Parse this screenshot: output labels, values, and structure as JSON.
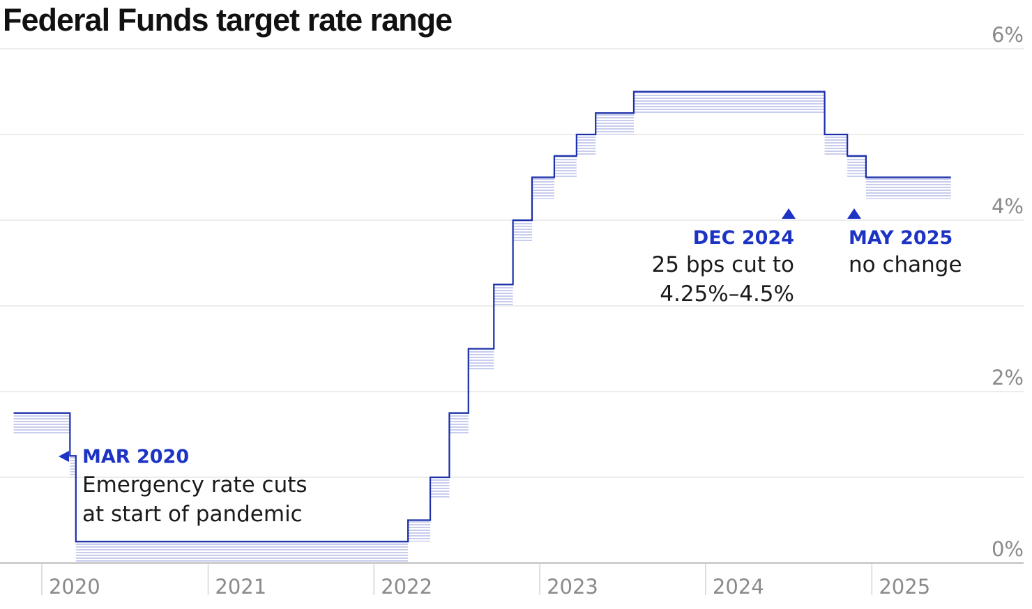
{
  "chart_data": {
    "type": "line",
    "title": "Federal Funds target rate range",
    "ylim": [
      0,
      6
    ],
    "xlim": [
      "2019-10",
      "2025-12"
    ],
    "y_ticks": [
      "0%",
      "2%",
      "4%",
      "6%"
    ],
    "x_ticks": [
      "2020",
      "2021",
      "2022",
      "2023",
      "2024",
      "2025"
    ],
    "grid": true,
    "series": [
      {
        "step": "post",
        "x": [
          "2019-10-31",
          "2020-03-03",
          "2020-03-16",
          "2022-03-17",
          "2022-05-05",
          "2022-06-16",
          "2022-07-28",
          "2022-09-22",
          "2022-11-03",
          "2022-12-15",
          "2023-02-02",
          "2023-03-23",
          "2023-05-04",
          "2023-07-27",
          "2024-09-19",
          "2024-11-08",
          "2024-12-19",
          "2025-05-07"
        ],
        "upper": [
          1.75,
          1.25,
          0.25,
          0.5,
          1.0,
          1.75,
          2.5,
          3.25,
          4.0,
          4.5,
          4.75,
          5.0,
          5.25,
          5.5,
          5.0,
          4.75,
          4.5,
          4.5
        ],
        "lower": [
          1.5,
          1.0,
          0.0,
          0.25,
          0.75,
          1.5,
          2.25,
          3.0,
          3.75,
          4.25,
          4.5,
          4.75,
          5.0,
          5.25,
          4.75,
          4.5,
          4.25,
          4.25
        ]
      }
    ],
    "annotations": [
      {
        "date": "2020-03",
        "marker": "left",
        "label": "MAR 2020",
        "text": [
          "Emergency rate cuts",
          "at start of pandemic"
        ]
      },
      {
        "date": "2024-12",
        "marker": "up",
        "label": "DEC 2024",
        "text": [
          "25 bps cut to",
          "4.25%–4.5%"
        ]
      },
      {
        "date": "2025-05",
        "marker": "up",
        "label": "MAY 2025",
        "text": [
          "no change"
        ]
      }
    ],
    "colors": {
      "line": "#1a2fa8",
      "fill": "#b7bde6",
      "annotation_label": "#1c33c4",
      "grid": "#d9d9d9",
      "axis": "#9a9a9a",
      "tick": "#8a8a8a"
    }
  }
}
